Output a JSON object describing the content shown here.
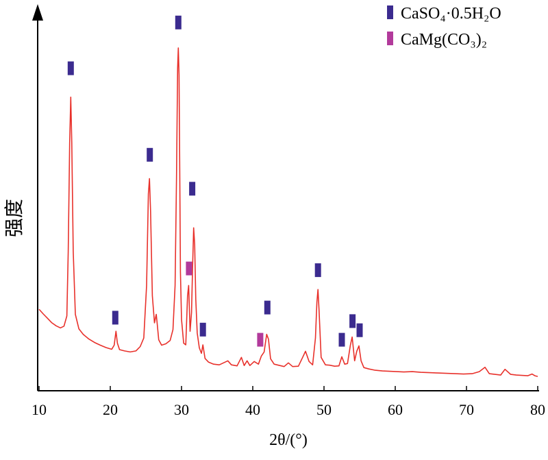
{
  "chart_data": {
    "type": "line",
    "title": "",
    "xlabel": "2θ/(°)",
    "ylabel": "强度",
    "xlim": [
      10,
      80
    ],
    "ylim": [
      0,
      100
    ],
    "xticks": [
      10,
      20,
      30,
      40,
      50,
      60,
      70,
      80
    ],
    "yticks_visible": false,
    "grid": false,
    "legend_position": "top-right",
    "line_color": "#e8302a",
    "series": [
      {
        "x": [
          10.0,
          10.6,
          11.2,
          11.8,
          12.4,
          13.0,
          13.5,
          13.9,
          14.1,
          14.3,
          14.45,
          14.6,
          14.8,
          15.1,
          15.6,
          16.2,
          17.0,
          17.8,
          18.6,
          19.4,
          20.2,
          20.55,
          20.8,
          21.0,
          21.3,
          22.0,
          22.8,
          23.6,
          24.2,
          24.7,
          25.1,
          25.35,
          25.5,
          25.65,
          25.9,
          26.2,
          26.45,
          26.6,
          26.8,
          27.2,
          27.8,
          28.4,
          28.8,
          29.1,
          29.3,
          29.45,
          29.55,
          29.65,
          29.75,
          29.85,
          30.0,
          30.3,
          30.6,
          30.85,
          31.0,
          31.2,
          31.4,
          31.55,
          31.7,
          31.85,
          32.0,
          32.2,
          32.5,
          32.8,
          33.0,
          33.3,
          33.8,
          34.5,
          35.3,
          36.1,
          36.5,
          37.0,
          37.8,
          38.4,
          38.8,
          39.2,
          39.6,
          40.2,
          40.8,
          41.2,
          41.6,
          41.95,
          42.2,
          42.5,
          43.0,
          43.6,
          44.4,
          45.0,
          45.6,
          46.4,
          47.0,
          47.4,
          47.9,
          48.4,
          48.8,
          49.0,
          49.15,
          49.3,
          49.6,
          50.2,
          50.8,
          51.5,
          52.1,
          52.5,
          52.9,
          53.3,
          53.7,
          53.95,
          54.3,
          54.6,
          54.9,
          55.2,
          55.6,
          56.3,
          57.2,
          58.2,
          59.2,
          60.2,
          61.2,
          62.4,
          63.6,
          64.8,
          66.0,
          67.2,
          68.4,
          69.6,
          70.8,
          71.8,
          72.6,
          73.2,
          74.0,
          74.8,
          75.4,
          76.2,
          77.0,
          77.8,
          78.6,
          79.2,
          79.6,
          80.0
        ],
        "y": [
          21.0,
          19.6,
          18.3,
          17.0,
          16.1,
          15.5,
          16.0,
          19.0,
          38.0,
          70.0,
          83.5,
          70.0,
          38.0,
          19.5,
          15.2,
          13.6,
          12.2,
          11.2,
          10.4,
          9.7,
          9.2,
          10.4,
          14.5,
          11.0,
          9.1,
          8.7,
          8.4,
          8.7,
          10.0,
          12.5,
          28.0,
          55.0,
          59.5,
          50.0,
          25.0,
          17.0,
          19.5,
          16.5,
          12.0,
          10.4,
          10.8,
          11.8,
          15.0,
          28.0,
          60.0,
          92.0,
          98.0,
          90.0,
          62.0,
          32.0,
          18.0,
          11.0,
          10.5,
          25.0,
          28.0,
          14.5,
          20.0,
          33.0,
          45.0,
          40.0,
          24.0,
          14.0,
          9.6,
          8.0,
          10.5,
          6.5,
          5.4,
          4.8,
          4.6,
          5.4,
          5.8,
          4.6,
          4.3,
          6.8,
          4.4,
          5.8,
          4.4,
          5.6,
          4.8,
          7.2,
          8.4,
          13.6,
          12.2,
          6.4,
          4.8,
          4.5,
          4.1,
          5.2,
          4.1,
          4.2,
          6.8,
          8.6,
          5.6,
          4.6,
          12.5,
          23.0,
          26.8,
          21.0,
          6.8,
          4.6,
          4.5,
          4.2,
          4.3,
          7.0,
          4.8,
          5.0,
          10.4,
          12.8,
          5.8,
          8.6,
          10.2,
          5.8,
          3.8,
          3.4,
          3.0,
          2.8,
          2.7,
          2.6,
          2.5,
          2.6,
          2.4,
          2.3,
          2.2,
          2.1,
          2.0,
          1.9,
          2.0,
          2.6,
          3.9,
          2.0,
          1.8,
          1.6,
          3.3,
          1.8,
          1.6,
          1.5,
          1.4,
          1.9,
          1.4,
          1.2
        ]
      }
    ],
    "legend": [
      {
        "label": "CaSO₄·0.5H₂O",
        "color": "#3b2b8f"
      },
      {
        "label": "CaMg(CO₃)₂",
        "color": "#b23a9b"
      }
    ],
    "phase_markers": [
      {
        "x": 14.45,
        "y": 92.0,
        "phase": 0
      },
      {
        "x": 20.7,
        "y": 18.5,
        "phase": 0
      },
      {
        "x": 25.55,
        "y": 66.5,
        "phase": 0
      },
      {
        "x": 29.55,
        "y": 105.5,
        "phase": 0
      },
      {
        "x": 31.5,
        "y": 56.5,
        "phase": 0
      },
      {
        "x": 31.05,
        "y": 33.0,
        "phase": 1
      },
      {
        "x": 33.0,
        "y": 15.0,
        "phase": 0
      },
      {
        "x": 41.05,
        "y": 12.0,
        "phase": 1
      },
      {
        "x": 42.05,
        "y": 21.5,
        "phase": 0
      },
      {
        "x": 49.15,
        "y": 32.5,
        "phase": 0
      },
      {
        "x": 52.5,
        "y": 12.0,
        "phase": 0
      },
      {
        "x": 54.0,
        "y": 17.5,
        "phase": 0
      },
      {
        "x": 55.0,
        "y": 14.8,
        "phase": 0
      }
    ]
  }
}
